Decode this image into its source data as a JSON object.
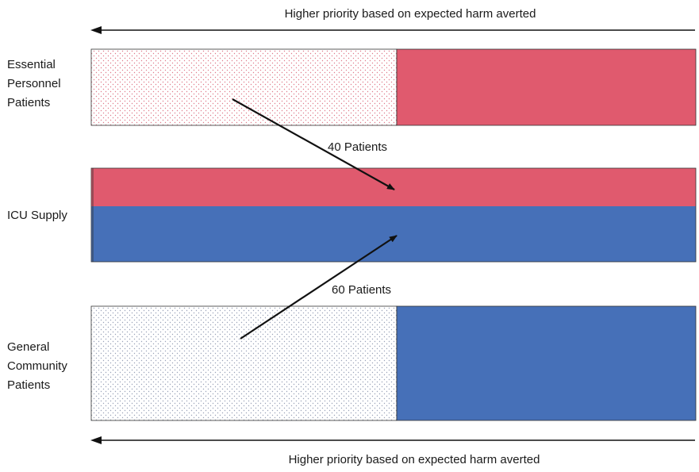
{
  "top_arrow": {
    "label": "Higher priority based on expected harm averted"
  },
  "bottom_arrow": {
    "label": "Higher priority based on expected harm averted"
  },
  "rows": {
    "essential": {
      "label_lines": [
        "Essential",
        "Personnel",
        "Patients"
      ]
    },
    "icu": {
      "label": "ICU Supply"
    },
    "general": {
      "label_lines": [
        "General",
        "Community",
        "Patients"
      ]
    }
  },
  "flows": {
    "essential_to_icu": {
      "label": "40 Patients",
      "count": 40
    },
    "general_to_icu": {
      "label": "60 Patients",
      "count": 60
    }
  },
  "colors": {
    "essential": "#e05a6e",
    "general": "#4670b8",
    "essential_dots": "#e07b8b",
    "general_dots": "#9aa3b8"
  }
}
